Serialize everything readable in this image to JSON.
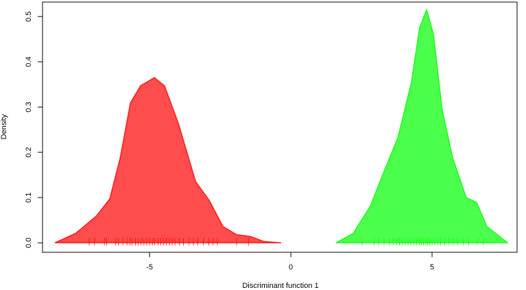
{
  "chart_data": {
    "type": "density",
    "x_label": "Discriminant function 1",
    "y_label": "Density",
    "xlim": [
      -8.79,
      8.01
    ],
    "ylim": [
      -0.021,
      0.532
    ],
    "xticks": [
      -5,
      0,
      5
    ],
    "yticks": [
      {
        "value": 0,
        "label": "0.0"
      },
      0.1,
      0.2,
      0.3,
      0.4,
      0.5
    ],
    "series": [
      {
        "color": "#ff0000",
        "x": [
          -8.35,
          -7.62,
          -6.89,
          -6.41,
          -6.04,
          -5.68,
          -5.32,
          -4.83,
          -4.47,
          -3.98,
          -3.37,
          -2.89,
          -2.4,
          -1.92,
          -1.43,
          -0.95,
          -0.34
        ],
        "y": [
          0,
          0.021,
          0.059,
          0.097,
          0.188,
          0.309,
          0.347,
          0.365,
          0.347,
          0.264,
          0.135,
          0.094,
          0.036,
          0.018,
          0.014,
          0.003,
          0
        ],
        "rug": [
          -7.14,
          -6.95,
          -6.6,
          -6.52,
          -6.2,
          -6.1,
          -5.95,
          -5.8,
          -5.7,
          -5.62,
          -5.5,
          -5.4,
          -5.3,
          -5.2,
          -5.1,
          -5.0,
          -4.9,
          -4.82,
          -4.7,
          -4.6,
          -4.5,
          -4.4,
          -4.3,
          -4.2,
          -4.1,
          -3.95,
          -3.8,
          -3.6,
          -3.45,
          -3.3,
          -3.1,
          -2.9,
          -2.75,
          -2.6,
          -1.92,
          -1.5
        ]
      },
      {
        "color": "#00ff00",
        "x": [
          1.6,
          2.21,
          2.82,
          3.3,
          3.79,
          4.27,
          4.56,
          4.81,
          5.05,
          5.36,
          5.73,
          6.21,
          6.58,
          6.94,
          7.67
        ],
        "y": [
          0,
          0.021,
          0.082,
          0.158,
          0.233,
          0.355,
          0.476,
          0.515,
          0.461,
          0.294,
          0.188,
          0.1,
          0.089,
          0.036,
          0
        ],
        "rug": [
          2.52,
          2.95,
          3.1,
          3.3,
          3.5,
          3.62,
          3.75,
          3.85,
          3.95,
          4.05,
          4.15,
          4.25,
          4.35,
          4.45,
          4.55,
          4.62,
          4.7,
          4.78,
          4.85,
          4.92,
          5.0,
          5.1,
          5.2,
          5.3,
          5.45,
          5.6,
          5.75,
          5.9,
          6.1,
          6.3,
          6.6,
          6.82
        ]
      }
    ]
  }
}
